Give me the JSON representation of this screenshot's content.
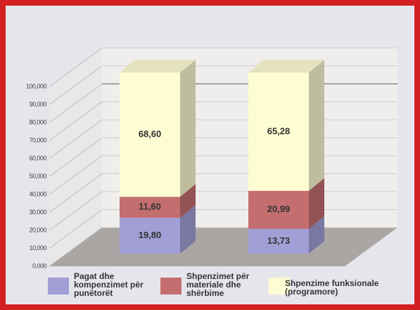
{
  "chart_data": {
    "type": "bar3d_stacked",
    "categories": [
      null,
      null
    ],
    "series": [
      {
        "name": "Pagat dhe kompenzimet për punëtorët",
        "color": "#a29ed6",
        "values": [
          19.8,
          13.73
        ],
        "value_labels": [
          "19,80",
          "13,73"
        ]
      },
      {
        "name": "Shpenzimet për materiale dhe shërbime",
        "color": "#c46e70",
        "values": [
          11.6,
          20.99
        ],
        "value_labels": [
          "11,60",
          "20,99"
        ]
      },
      {
        "name": "Shpenzime funksionale (programore)",
        "color": "#fdfcd2",
        "values": [
          68.6,
          65.28
        ],
        "value_labels": [
          "68,60",
          "65,28"
        ]
      }
    ],
    "ylim": [
      0,
      100
    ],
    "yticks": [
      {
        "value": 0,
        "label": "0,000"
      },
      {
        "value": 10,
        "label": "10,000"
      },
      {
        "value": 20,
        "label": "20,000"
      },
      {
        "value": 30,
        "label": "30,000"
      },
      {
        "value": 40,
        "label": "40,000"
      },
      {
        "value": 50,
        "label": "50,000"
      },
      {
        "value": 60,
        "label": "60,000"
      },
      {
        "value": 70,
        "label": "70,000"
      },
      {
        "value": 80,
        "label": "80,000"
      },
      {
        "value": 90,
        "label": "90,000"
      },
      {
        "value": 100,
        "label": "100,000"
      }
    ],
    "grid": true
  }
}
